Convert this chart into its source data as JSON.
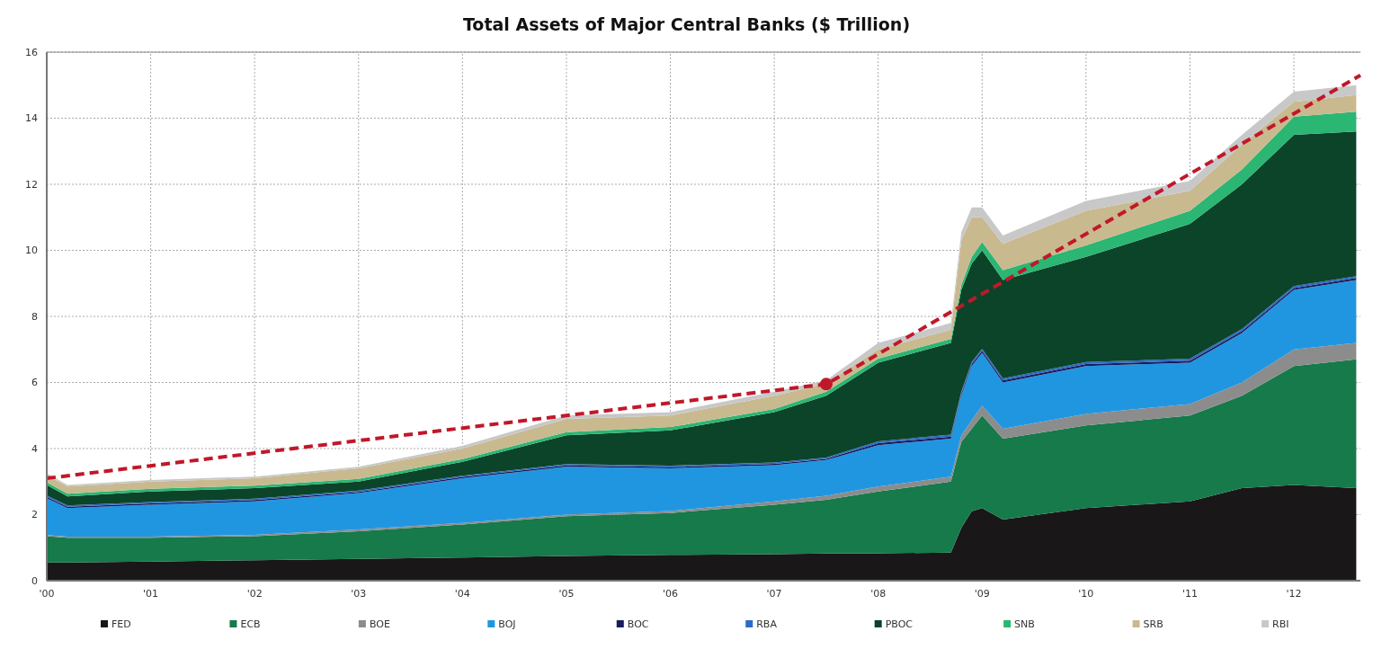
{
  "chart_data": {
    "type": "area",
    "stacked": true,
    "title": "Total Assets of Major Central Banks ($ Trillion)",
    "x": [
      2000,
      2000.2,
      2001,
      2002,
      2003,
      2004,
      2005,
      2006,
      2007,
      2007.5,
      2008,
      2008.7,
      2008.8,
      2008.9,
      2009,
      2009.2,
      2010,
      2011,
      2011.5,
      2012,
      2012.6
    ],
    "xlim": [
      2000,
      2012.64
    ],
    "xticks": [
      {
        "value": 2000,
        "label": "'00"
      },
      {
        "value": 2001,
        "label": "'01"
      },
      {
        "value": 2002,
        "label": "'02"
      },
      {
        "value": 2003,
        "label": "'03"
      },
      {
        "value": 2004,
        "label": "'04"
      },
      {
        "value": 2005,
        "label": "'05"
      },
      {
        "value": 2006,
        "label": "'06"
      },
      {
        "value": 2007,
        "label": "'07"
      },
      {
        "value": 2008,
        "label": "'08"
      },
      {
        "value": 2009,
        "label": "'09"
      },
      {
        "value": 2010,
        "label": "'10"
      },
      {
        "value": 2011,
        "label": "'11"
      },
      {
        "value": 2012,
        "label": "'12"
      }
    ],
    "ylim": [
      0,
      16
    ],
    "yticks": [
      0,
      2,
      4,
      6,
      8,
      10,
      12,
      14,
      16
    ],
    "grid": true,
    "legend": "bottom",
    "line_style": "dashed",
    "series": [
      {
        "name": "FED",
        "color": "#1a1718",
        "values": [
          0.55,
          0.55,
          0.58,
          0.62,
          0.66,
          0.7,
          0.75,
          0.78,
          0.8,
          0.82,
          0.83,
          0.85,
          1.6,
          2.1,
          2.2,
          1.85,
          2.2,
          2.4,
          2.8,
          2.9,
          2.8
        ]
      },
      {
        "name": "ECB",
        "color": "#167a4a",
        "values": [
          0.8,
          0.75,
          0.72,
          0.73,
          0.84,
          1.0,
          1.2,
          1.27,
          1.5,
          1.63,
          1.87,
          2.15,
          2.6,
          2.5,
          2.8,
          2.45,
          2.5,
          2.6,
          2.8,
          3.6,
          3.9
        ]
      },
      {
        "name": "BOE",
        "color": "#8c8c8c",
        "values": [
          0.03,
          0.03,
          0.03,
          0.04,
          0.05,
          0.05,
          0.05,
          0.06,
          0.1,
          0.12,
          0.15,
          0.15,
          0.2,
          0.25,
          0.3,
          0.3,
          0.35,
          0.35,
          0.4,
          0.5,
          0.5
        ]
      },
      {
        "name": "BOJ",
        "color": "#2196e0",
        "values": [
          1.12,
          0.87,
          0.97,
          1.01,
          1.1,
          1.35,
          1.45,
          1.29,
          1.1,
          1.08,
          1.25,
          1.15,
          1.2,
          1.65,
          1.6,
          1.4,
          1.45,
          1.25,
          1.5,
          1.8,
          1.9
        ]
      },
      {
        "name": "BOC",
        "color": "#1a1a5e",
        "values": [
          0.04,
          0.04,
          0.04,
          0.04,
          0.04,
          0.04,
          0.04,
          0.04,
          0.04,
          0.04,
          0.06,
          0.06,
          0.06,
          0.06,
          0.06,
          0.06,
          0.06,
          0.06,
          0.06,
          0.06,
          0.06
        ]
      },
      {
        "name": "RBA",
        "color": "#2b6cc4",
        "values": [
          0.04,
          0.04,
          0.04,
          0.04,
          0.04,
          0.04,
          0.04,
          0.04,
          0.04,
          0.04,
          0.06,
          0.06,
          0.06,
          0.06,
          0.06,
          0.06,
          0.06,
          0.06,
          0.06,
          0.06,
          0.06
        ]
      },
      {
        "name": "PBOC",
        "color": "#0b4429",
        "values": [
          0.32,
          0.27,
          0.32,
          0.32,
          0.27,
          0.42,
          0.87,
          1.07,
          1.52,
          1.87,
          2.38,
          2.78,
          3.08,
          2.98,
          2.98,
          2.98,
          3.18,
          4.08,
          4.38,
          4.58,
          4.38
        ]
      },
      {
        "name": "SNB",
        "color": "#2bb673",
        "values": [
          0.08,
          0.08,
          0.08,
          0.08,
          0.08,
          0.08,
          0.1,
          0.1,
          0.1,
          0.12,
          0.12,
          0.12,
          0.15,
          0.2,
          0.25,
          0.3,
          0.35,
          0.4,
          0.45,
          0.55,
          0.6
        ]
      },
      {
        "name": "SRB",
        "color": "#c9b98f",
        "values": [
          0.22,
          0.22,
          0.22,
          0.22,
          0.32,
          0.32,
          0.4,
          0.35,
          0.4,
          0.25,
          0.28,
          0.28,
          1.35,
          1.2,
          0.75,
          0.8,
          1.05,
          0.6,
          0.75,
          0.45,
          0.5
        ]
      },
      {
        "name": "RBI",
        "color": "#c8c8c8",
        "values": [
          0.05,
          0.05,
          0.05,
          0.05,
          0.05,
          0.08,
          0.1,
          0.1,
          0.12,
          0.1,
          0.2,
          0.2,
          0.25,
          0.3,
          0.3,
          0.25,
          0.3,
          0.3,
          0.3,
          0.3,
          0.3
        ]
      },
      {
        "type": "line",
        "color": "#c0182a",
        "x": [
          2000,
          2007.5,
          2012.64
        ],
        "values": [
          3.1,
          5.95,
          15.3
        ]
      },
      {
        "type": "scatter",
        "color": "#c0182a",
        "x": [
          2007.5
        ],
        "values": [
          5.95
        ]
      }
    ]
  }
}
